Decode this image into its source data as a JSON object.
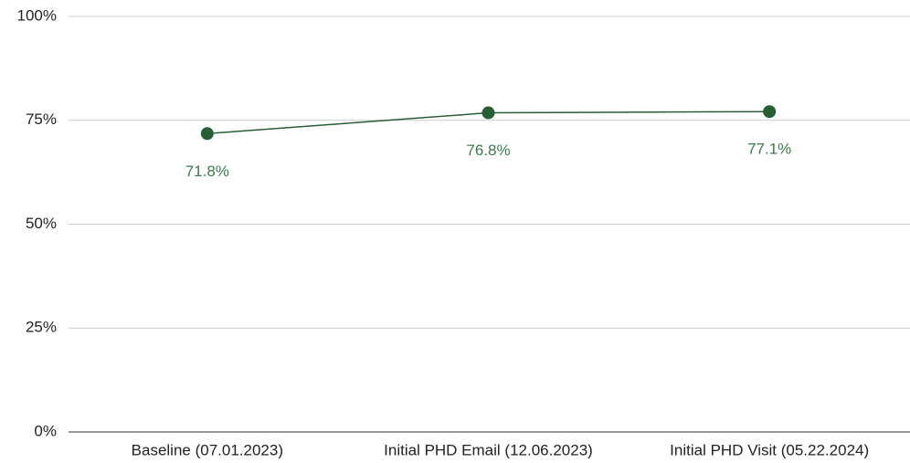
{
  "chart_data": {
    "type": "line",
    "categories": [
      "Baseline (07.01.2023)",
      "Initial PHD Email (12.06.2023)",
      "Initial PHD Visit (05.22.2024)"
    ],
    "series": [
      {
        "name": null,
        "color": "#275e36",
        "values": [
          71.8,
          76.8,
          77.1
        ],
        "value_labels": [
          "71.8%",
          "76.8%",
          "77.1%"
        ]
      }
    ],
    "ylim": [
      0,
      100
    ],
    "yticks": [
      {
        "value": 0,
        "label": "0%"
      },
      {
        "value": 25,
        "label": "25%"
      },
      {
        "value": 50,
        "label": "50%"
      },
      {
        "value": 75,
        "label": "75%"
      },
      {
        "value": 100,
        "label": "100%"
      }
    ],
    "grid": true
  }
}
